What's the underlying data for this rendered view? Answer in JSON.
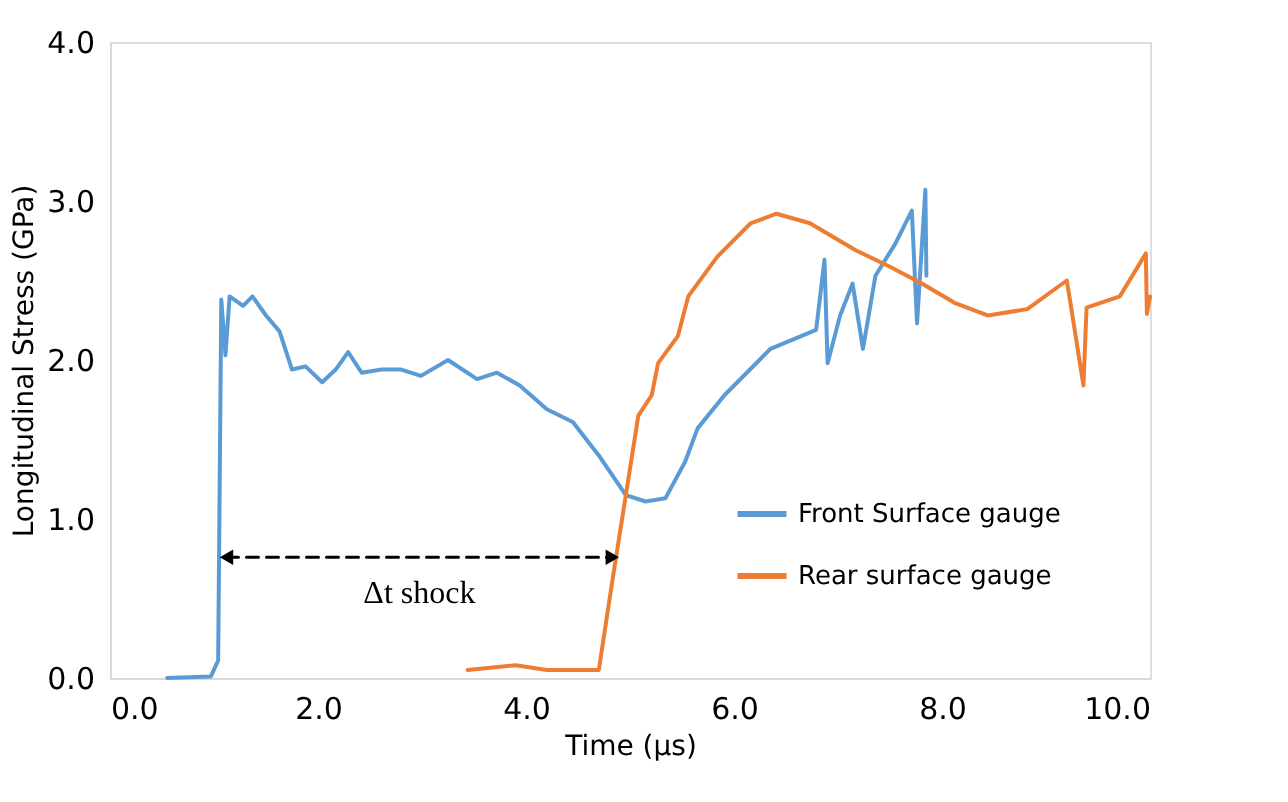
{
  "chart_data": {
    "type": "line",
    "xlabel": "Time (µs)",
    "ylabel": "Longitudinal Stress (GPa)",
    "xlim": [
      0,
      10
    ],
    "ylim": [
      0,
      4
    ],
    "xticks": [
      {
        "value": 0,
        "label": "0.0"
      },
      {
        "value": 2,
        "label": "2.0"
      },
      {
        "value": 4,
        "label": "4.0"
      },
      {
        "value": 6,
        "label": "6.0"
      },
      {
        "value": 8,
        "label": "8.0"
      },
      {
        "value": 10,
        "label": "10.0"
      }
    ],
    "yticks": [
      {
        "value": 0,
        "label": "0.0"
      },
      {
        "value": 1,
        "label": "1.0"
      },
      {
        "value": 2,
        "label": "2.0"
      },
      {
        "value": 3,
        "label": "3.0"
      },
      {
        "value": 4,
        "label": "4.0"
      }
    ],
    "grid": false,
    "legend": "bottom right",
    "marker": "none",
    "line_style": "solid",
    "annotations": [
      "Δt shock"
    ],
    "series": [
      {
        "name": "Front Surface gauge",
        "color": "#5b9bd5",
        "x": [
          0.55,
          0.97,
          1.04,
          1.07,
          1.11,
          1.15,
          1.28,
          1.37,
          1.5,
          1.63,
          1.75,
          1.88,
          2.04,
          2.17,
          2.29,
          2.42,
          2.61,
          2.8,
          2.99,
          3.25,
          3.53,
          3.72,
          3.94,
          4.2,
          4.45,
          4.7,
          4.96,
          5.15,
          5.34,
          5.53,
          5.65,
          5.91,
          6.35,
          6.79,
          6.87,
          6.9,
          7.02,
          7.14,
          7.24,
          7.36,
          7.55,
          7.71,
          7.76,
          7.84,
          7.85
        ],
        "values": [
          0,
          0.01,
          0.11,
          2.38,
          2.03,
          2.4,
          2.34,
          2.4,
          2.28,
          2.18,
          1.94,
          1.96,
          1.86,
          1.94,
          2.05,
          1.92,
          1.94,
          1.94,
          1.9,
          2.0,
          1.88,
          1.92,
          1.84,
          1.69,
          1.61,
          1.4,
          1.15,
          1.11,
          1.13,
          1.36,
          1.57,
          1.78,
          2.07,
          2.19,
          2.63,
          1.98,
          2.28,
          2.48,
          2.07,
          2.53,
          2.73,
          2.94,
          2.23,
          3.07,
          2.53
        ]
      },
      {
        "name": "Rear surface gauge",
        "color": "#ed7d31",
        "x": [
          3.44,
          3.9,
          4.2,
          4.68,
          4.7,
          4.83,
          4.96,
          5.08,
          5.21,
          5.27,
          5.46,
          5.56,
          5.84,
          6.16,
          6.41,
          6.73,
          7.17,
          7.49,
          7.81,
          8.12,
          8.44,
          8.82,
          9.2,
          9.23,
          9.36,
          9.39,
          9.71,
          9.96,
          9.97,
          10.0
        ],
        "values": [
          0.05,
          0.08,
          0.05,
          0.05,
          0.05,
          0.61,
          1.15,
          1.65,
          1.78,
          1.98,
          2.15,
          2.4,
          2.65,
          2.86,
          2.92,
          2.86,
          2.69,
          2.59,
          2.48,
          2.36,
          2.28,
          2.32,
          2.5,
          2.38,
          1.84,
          2.33,
          2.4,
          2.67,
          2.29,
          2.4
        ]
      },
      {
        "color": "#000000",
        "line_style": "dashed",
        "marker": "triangle",
        "x": [
          1.12,
          4.83
        ],
        "values": [
          0.76,
          0.76
        ]
      }
    ]
  }
}
